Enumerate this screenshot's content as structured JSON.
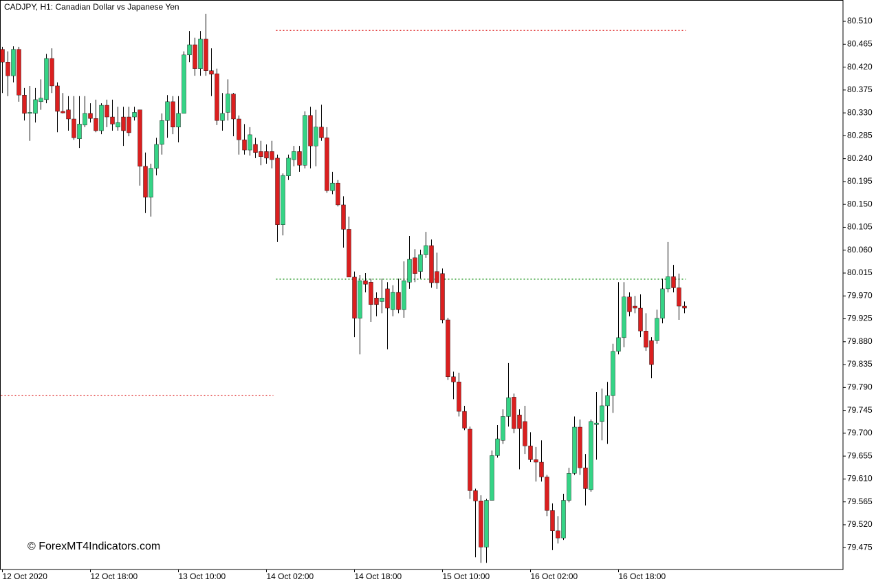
{
  "chart_data": {
    "type": "candlestick",
    "title": "CADJPY, H1:  Canadian Dollar vs Japanese Yen",
    "watermark": "© ForexMT4Indicators.com",
    "up_color": "#35d486",
    "down_color": "#db1f1f",
    "wick_color": "#000000",
    "ylim": [
      79.432,
      80.552
    ],
    "yticks": [
      {
        "value": 80.51,
        "label": "80.510"
      },
      80.465,
      {
        "value": 80.42,
        "label": "80.420"
      },
      80.375,
      {
        "value": 80.33,
        "label": "80.330"
      },
      80.285,
      {
        "value": 80.24,
        "label": "80.240"
      },
      80.195,
      {
        "value": 80.15,
        "label": "80.150"
      },
      80.105,
      {
        "value": 80.06,
        "label": "80.060"
      },
      80.015,
      {
        "value": 79.97,
        "label": "79.970"
      },
      79.925,
      {
        "value": 79.88,
        "label": "79.880"
      },
      79.835,
      {
        "value": 79.79,
        "label": "79.790"
      },
      79.745,
      {
        "value": 79.7,
        "label": "79.700"
      },
      79.655,
      {
        "value": 79.61,
        "label": "79.610"
      },
      79.565,
      {
        "value": 79.52,
        "label": "79.520"
      },
      79.475
    ],
    "categories": [
      "12 Oct 2020",
      null,
      null,
      null,
      null,
      null,
      null,
      null,
      null,
      null,
      null,
      null,
      null,
      null,
      null,
      null,
      "12 Oct 18:00",
      null,
      null,
      null,
      null,
      null,
      null,
      null,
      null,
      null,
      null,
      null,
      null,
      null,
      null,
      null,
      "13 Oct 10:00",
      null,
      null,
      null,
      null,
      null,
      null,
      null,
      null,
      null,
      null,
      null,
      null,
      null,
      null,
      null,
      "14 Oct 02:00",
      null,
      null,
      null,
      null,
      null,
      null,
      null,
      null,
      null,
      null,
      null,
      null,
      null,
      null,
      null,
      "14 Oct 18:00",
      null,
      null,
      null,
      null,
      null,
      null,
      null,
      null,
      null,
      null,
      null,
      null,
      null,
      null,
      null,
      "15 Oct 10:00",
      null,
      null,
      null,
      null,
      null,
      null,
      null,
      null,
      null,
      null,
      null,
      null,
      null,
      null,
      null,
      "16 Oct 02:00",
      null,
      null,
      null,
      null,
      null,
      null,
      null,
      null,
      null,
      null,
      null,
      null,
      null,
      null,
      null,
      "16 Oct 18:00",
      null,
      null,
      null,
      null,
      null,
      null,
      null,
      null,
      null,
      null,
      null,
      null
    ],
    "open": [
      80.455,
      80.43,
      80.403,
      80.455,
      80.365,
      80.329,
      80.329,
      80.352,
      80.356,
      80.437,
      80.383,
      80.333,
      80.336,
      80.318,
      80.279,
      80.306,
      80.329,
      80.319,
      80.295,
      80.345,
      80.322,
      80.302,
      80.322,
      80.322,
      80.322,
      80.336,
      80.225,
      80.164,
      80.221,
      80.268,
      80.315,
      80.352,
      80.302,
      80.329,
      80.444,
      80.464,
      80.417,
      80.475,
      80.413,
      80.407,
      80.315,
      80.331,
      80.367,
      80.318,
      80.277,
      80.257,
      80.268,
      80.254,
      80.254,
      80.254,
      80.241,
      80.11,
      80.206,
      80.238,
      80.254,
      80.227,
      80.325,
      80.265,
      80.302,
      80.281,
      80.177,
      80.192,
      80.149,
      80.101,
      80.007,
      79.926,
      80.0,
      79.997,
      79.966,
      79.959,
      79.984,
      79.943,
      79.977,
      79.943,
      79.997,
      80.045,
      80.018,
      80.051,
      80.069,
      80.018,
      80.014,
      79.923,
      79.811,
      79.801,
      79.743,
      79.708,
      79.587,
      79.567,
      79.476,
      79.568,
      79.656,
      79.686,
      79.733,
      79.771,
      79.736,
      79.723,
      79.675,
      79.648,
      79.643,
      79.614,
      79.548,
      79.508,
      79.494,
      79.568,
      79.621,
      79.712,
      79.632,
      79.589,
      79.717,
      79.723,
      79.754,
      79.774,
      79.861,
      79.888,
      79.968,
      79.95,
      79.946,
      79.901,
      79.882,
      79.882,
      79.926,
      79.984,
      80.008,
      79.986,
      79.95
    ],
    "high": [
      80.46,
      80.451,
      80.461,
      80.46,
      80.379,
      80.383,
      80.379,
      80.396,
      80.446,
      80.457,
      80.39,
      80.369,
      80.363,
      80.363,
      80.363,
      80.363,
      80.349,
      80.356,
      80.349,
      80.356,
      80.356,
      80.342,
      80.342,
      80.342,
      80.342,
      80.336,
      80.252,
      80.23,
      80.281,
      80.329,
      80.365,
      80.363,
      80.363,
      80.451,
      80.491,
      80.478,
      80.491,
      80.525,
      80.457,
      80.417,
      80.369,
      80.396,
      80.369,
      80.325,
      80.308,
      80.302,
      80.281,
      80.275,
      80.268,
      80.275,
      80.248,
      80.211,
      80.248,
      80.265,
      80.265,
      80.333,
      80.342,
      80.336,
      80.346,
      80.302,
      80.214,
      80.198,
      80.166,
      80.126,
      80.018,
      80.011,
      80.015,
      80.004,
      79.977,
      80.004,
      79.997,
      79.991,
      80.004,
      80.038,
      80.088,
      80.062,
      80.061,
      80.096,
      80.081,
      80.055,
      80.024,
      79.927,
      79.821,
      79.819,
      79.754,
      79.713,
      79.591,
      79.578,
      79.571,
      79.666,
      79.716,
      79.747,
      79.838,
      79.778,
      79.747,
      79.754,
      79.702,
      79.673,
      79.686,
      79.618,
      79.562,
      79.537,
      79.581,
      79.632,
      79.733,
      79.727,
      79.659,
      79.727,
      79.781,
      79.788,
      79.801,
      79.876,
      79.997,
      79.997,
      79.977,
      79.97,
      79.973,
      79.936,
      79.889,
      79.943,
      80.004,
      80.076,
      80.031,
      80.014,
      79.959
    ],
    "low": [
      80.369,
      80.363,
      80.39,
      80.352,
      80.315,
      80.275,
      80.311,
      80.336,
      80.349,
      80.369,
      80.292,
      80.329,
      80.295,
      80.277,
      80.261,
      80.302,
      80.311,
      80.292,
      80.288,
      80.302,
      80.295,
      80.295,
      80.265,
      80.284,
      80.315,
      80.187,
      80.133,
      80.126,
      80.207,
      80.248,
      80.281,
      80.288,
      80.272,
      80.329,
      80.43,
      80.403,
      80.403,
      80.403,
      80.363,
      80.306,
      80.295,
      80.315,
      80.284,
      80.248,
      80.248,
      80.246,
      80.241,
      80.227,
      80.23,
      80.221,
      80.076,
      80.089,
      80.198,
      80.225,
      80.214,
      80.221,
      80.221,
      80.225,
      80.275,
      80.173,
      80.17,
      80.146,
      80.065,
      80.007,
      79.889,
      79.855,
      79.977,
      79.919,
      79.93,
      79.936,
      79.865,
      79.93,
      79.936,
      79.927,
      79.984,
      79.997,
      80.004,
      80.045,
      79.986,
      79.984,
      79.916,
      79.805,
      79.767,
      79.733,
      79.706,
      79.571,
      79.456,
      79.445,
      79.445,
      79.568,
      79.652,
      79.679,
      79.713,
      79.7,
      79.629,
      79.659,
      79.643,
      79.605,
      79.605,
      79.537,
      79.47,
      79.483,
      79.49,
      79.564,
      79.618,
      79.618,
      79.558,
      79.585,
      79.648,
      79.686,
      79.679,
      79.74,
      79.855,
      79.869,
      79.93,
      79.936,
      79.889,
      79.862,
      79.808,
      79.876,
      79.916,
      79.977,
      79.977,
      79.923,
      79.936
    ],
    "close": [
      80.43,
      80.403,
      80.455,
      80.365,
      80.329,
      80.331,
      80.356,
      80.359,
      80.437,
      80.383,
      80.333,
      80.33,
      80.318,
      80.281,
      80.308,
      80.329,
      80.319,
      80.295,
      80.345,
      80.322,
      80.308,
      80.311,
      80.295,
      80.291,
      80.331,
      80.225,
      80.164,
      80.221,
      80.268,
      80.315,
      80.352,
      80.302,
      80.329,
      80.444,
      80.464,
      80.417,
      80.475,
      80.413,
      80.406,
      80.315,
      80.329,
      80.367,
      80.318,
      80.277,
      80.257,
      80.287,
      80.252,
      80.244,
      80.241,
      80.238,
      80.11,
      80.207,
      80.241,
      80.254,
      80.227,
      80.325,
      80.265,
      80.302,
      80.281,
      80.177,
      80.192,
      80.149,
      80.101,
      80.007,
      79.926,
      80.0,
      79.993,
      79.953,
      79.953,
      79.966,
      79.946,
      79.977,
      79.943,
      80.0,
      80.042,
      80.014,
      80.051,
      80.069,
      79.996,
      79.996,
      79.923,
      79.811,
      79.801,
      79.743,
      79.71,
      79.587,
      79.567,
      79.476,
      79.568,
      79.656,
      79.689,
      79.733,
      79.77,
      79.709,
      79.709,
      79.675,
      79.648,
      79.643,
      79.614,
      79.548,
      79.508,
      79.494,
      79.568,
      79.621,
      79.712,
      79.632,
      79.591,
      79.723,
      79.72,
      79.754,
      79.774,
      79.861,
      79.888,
      79.968,
      79.939,
      79.946,
      79.901,
      79.869,
      79.835,
      79.926,
      79.984,
      80.008,
      79.986,
      79.95,
      79.946
    ],
    "levels": [
      {
        "value": 80.492,
        "color": "#e03030",
        "span": [
          50,
          124
        ]
      },
      {
        "value": 80.003,
        "color": "#2a9a2a",
        "span": [
          50,
          124
        ]
      },
      {
        "value": 79.774,
        "color": "#e03030",
        "span": [
          0,
          49
        ]
      }
    ]
  }
}
